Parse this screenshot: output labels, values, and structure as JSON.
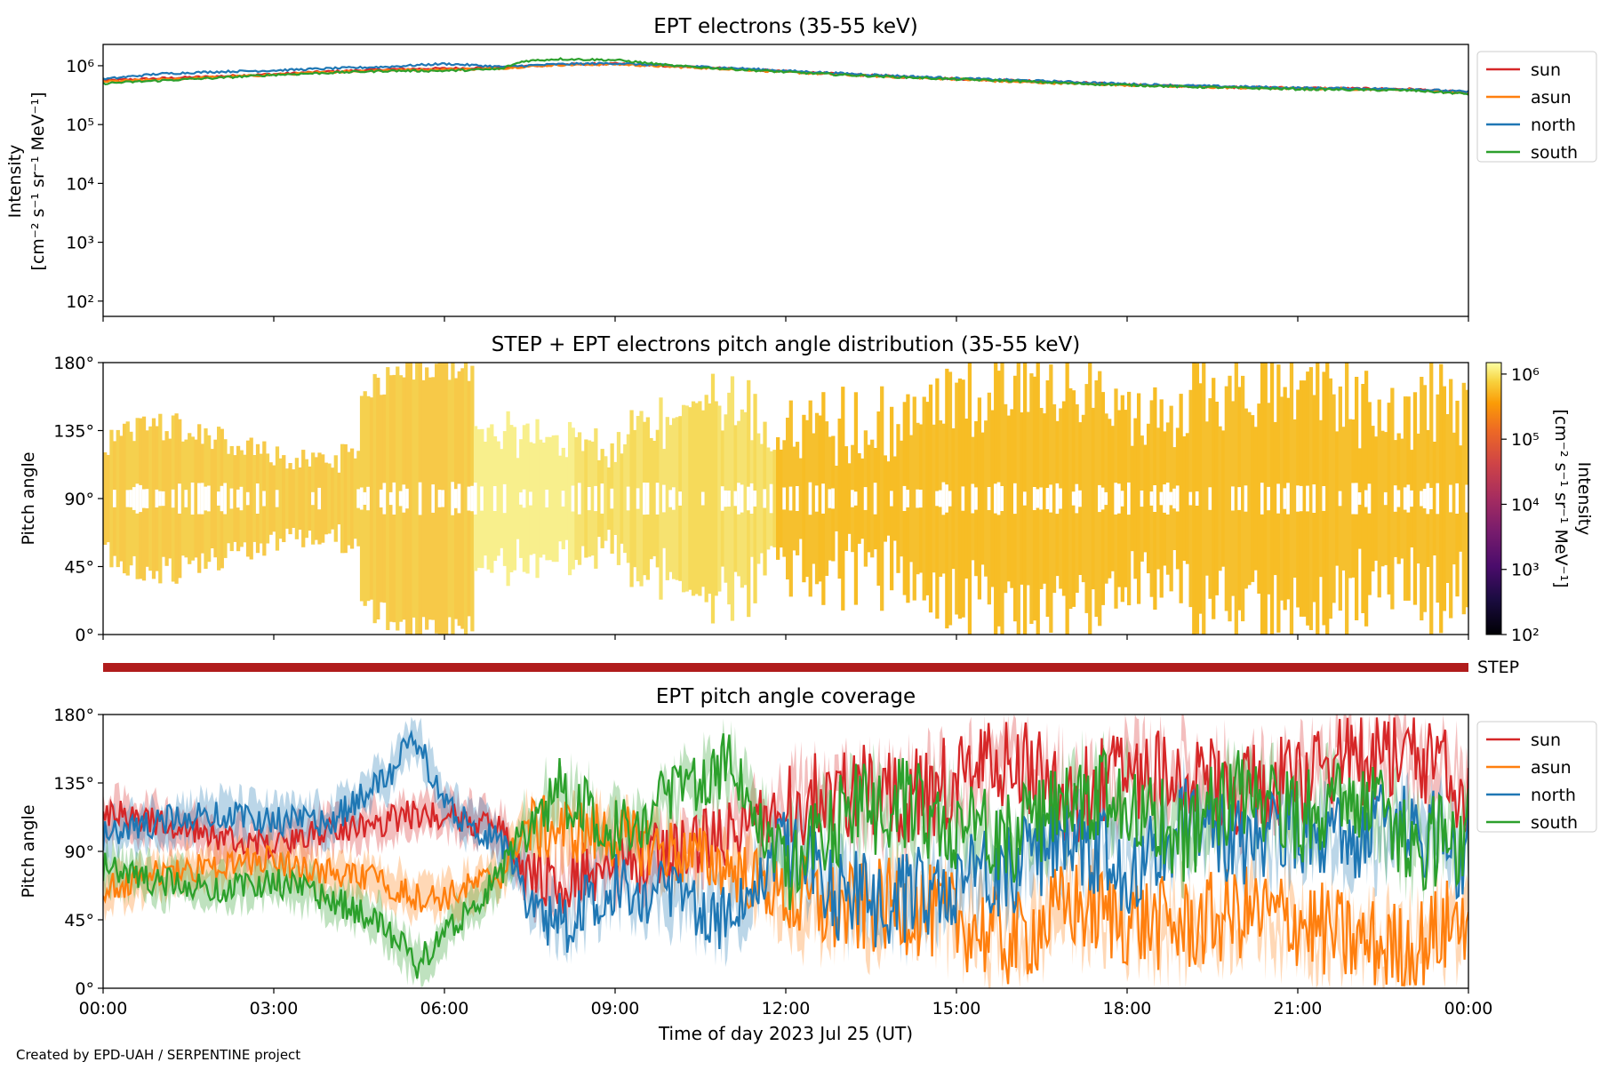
{
  "footer": "Created by EPD-UAH / SERPENTINE project",
  "xlabel": "Time of day 2023 Jul 25 (UT)",
  "time_ticks": [
    "00:00",
    "03:00",
    "06:00",
    "09:00",
    "12:00",
    "15:00",
    "18:00",
    "21:00",
    "00:00"
  ],
  "colors": {
    "sun": "#d62728",
    "asun": "#ff7f0e",
    "north": "#1f77b4",
    "south": "#2ca02c",
    "step_bar": "#b01c1c"
  },
  "chart_data": [
    {
      "type": "line",
      "title": "EPT electrons (35-55 keV)",
      "ylabel_line1": "Intensity",
      "ylabel_line2": "[cm⁻² s⁻¹ sr⁻¹ MeV⁻¹]",
      "y_scale": "log",
      "ylim": [
        55,
        2300000
      ],
      "yticks": [
        "10²",
        "10³",
        "10⁴",
        "10⁵",
        "10⁶"
      ],
      "legend_placement": "outside-right",
      "x_hours": [
        0,
        1,
        2,
        3,
        4,
        5,
        6,
        7,
        7.4,
        8,
        9,
        10,
        11,
        12,
        13,
        14,
        15,
        16,
        17,
        18,
        19,
        20,
        21,
        22,
        23,
        24
      ],
      "series": [
        {
          "name": "sun",
          "values": [
            560000,
            610000,
            660000,
            720000,
            800000,
            870000,
            900000,
            930000,
            980000,
            1050000,
            1080000,
            980000,
            900000,
            800000,
            720000,
            650000,
            600000,
            560000,
            520000,
            480000,
            450000,
            430000,
            420000,
            410000,
            400000,
            350000
          ]
        },
        {
          "name": "asun",
          "values": [
            540000,
            580000,
            640000,
            700000,
            780000,
            840000,
            860000,
            900000,
            960000,
            1030000,
            1060000,
            960000,
            880000,
            780000,
            700000,
            640000,
            590000,
            530000,
            500000,
            470000,
            440000,
            420000,
            410000,
            400000,
            390000,
            340000
          ]
        },
        {
          "name": "north",
          "values": [
            590000,
            730000,
            790000,
            830000,
            900000,
            960000,
            1080000,
            960000,
            1000000,
            1060000,
            1100000,
            1000000,
            920000,
            820000,
            740000,
            670000,
            610000,
            570000,
            530000,
            490000,
            460000,
            440000,
            420000,
            410000,
            400000,
            360000
          ]
        },
        {
          "name": "south",
          "values": [
            500000,
            560000,
            620000,
            700000,
            760000,
            820000,
            820000,
            880000,
            1200000,
            1300000,
            1250000,
            1000000,
            880000,
            780000,
            700000,
            640000,
            590000,
            550000,
            500000,
            470000,
            440000,
            420000,
            400000,
            390000,
            380000,
            330000
          ]
        }
      ]
    },
    {
      "type": "heatmap",
      "title": "STEP + EPT electrons pitch angle distribution (35-55 keV)",
      "ylabel": "Pitch angle",
      "yticks": [
        "0°",
        "45°",
        "90°",
        "135°",
        "180°"
      ],
      "ylim": [
        0,
        180
      ],
      "colorbar": {
        "label_line1": "Intensity",
        "label_line2": "[cm⁻² s⁻¹ sr⁻¹ MeV⁻¹]",
        "scale": "log",
        "range": [
          100,
          1500000
        ],
        "ticks": [
          "10²",
          "10³",
          "10⁴",
          "10⁵",
          "10⁶"
        ],
        "colormap": "inferno"
      }
    },
    {
      "type": "bar",
      "label": "STEP",
      "x_hours": [
        0,
        24
      ]
    },
    {
      "type": "line",
      "title": "EPT pitch angle coverage",
      "ylabel": "Pitch angle",
      "yticks": [
        "0°",
        "45°",
        "90°",
        "135°",
        "180°"
      ],
      "ylim": [
        0,
        180
      ],
      "legend_placement": "outside-right",
      "x_hours": [
        0,
        1,
        2,
        3,
        4,
        5,
        5.5,
        6,
        7,
        7.4,
        8,
        9,
        10,
        11,
        12,
        13,
        14,
        15,
        16,
        17,
        18,
        19,
        20,
        21,
        22,
        23,
        24
      ],
      "series": [
        {
          "name": "sun",
          "values": [
            115,
            110,
            100,
            95,
            105,
            110,
            115,
            115,
            105,
            75,
            70,
            80,
            90,
            100,
            120,
            130,
            125,
            135,
            150,
            125,
            140,
            145,
            130,
            135,
            150,
            155,
            130
          ]
        },
        {
          "name": "asun",
          "values": [
            65,
            75,
            80,
            85,
            75,
            70,
            60,
            60,
            75,
            105,
            105,
            100,
            90,
            80,
            60,
            50,
            55,
            45,
            30,
            55,
            45,
            40,
            50,
            45,
            30,
            25,
            50
          ]
        },
        {
          "name": "north",
          "values": [
            100,
            110,
            115,
            110,
            110,
            140,
            165,
            120,
            95,
            70,
            40,
            70,
            60,
            45,
            100,
            60,
            55,
            75,
            80,
            100,
            80,
            110,
            95,
            105,
            100,
            110,
            85
          ]
        },
        {
          "name": "south",
          "values": [
            80,
            70,
            65,
            70,
            60,
            40,
            15,
            35,
            75,
            110,
            130,
            105,
            125,
            150,
            80,
            115,
            120,
            110,
            100,
            125,
            130,
            100,
            130,
            110,
            130,
            95,
            100
          ]
        }
      ]
    }
  ]
}
